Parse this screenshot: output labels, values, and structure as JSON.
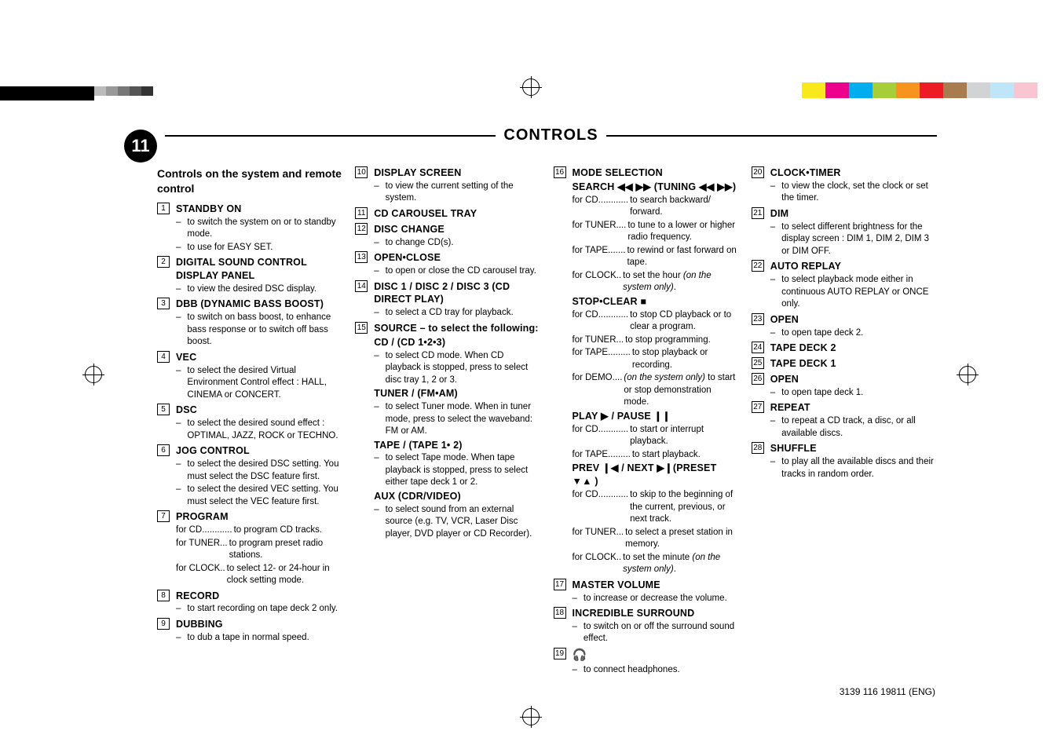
{
  "page_number": "11",
  "title": "CONTROLS",
  "footer": "3139 116 19811 (ENG)",
  "section_heading": "Controls on the system and remote control",
  "palette_colors": [
    "#f8e81c",
    "#ec008c",
    "#00aeef",
    "#a6ce39",
    "#f7941d",
    "#ed1c24",
    "#a97c50",
    "#d1d3d4",
    "#bfe5f9",
    "#f9c5d1"
  ],
  "items": [
    {
      "n": "1",
      "name": "STANDBY ON",
      "dashes": [
        "to switch the system on or to standby mode.",
        "to use for EASY SET."
      ]
    },
    {
      "n": "2",
      "name": "DIGITAL SOUND CONTROL DISPLAY PANEL",
      "dashes": [
        "to view the desired DSC display."
      ]
    },
    {
      "n": "3",
      "name": "DBB (DYNAMIC BASS BOOST)",
      "dashes": [
        "to switch on bass boost, to enhance bass response or to switch off bass boost."
      ]
    },
    {
      "n": "4",
      "name": "VEC",
      "dashes": [
        "to select the desired Virtual Environment Control effect : HALL, CINEMA or CONCERT."
      ]
    },
    {
      "n": "5",
      "name": "DSC",
      "dashes": [
        "to select the desired sound effect : OPTIMAL, JAZZ,  ROCK or TECHNO."
      ]
    },
    {
      "n": "6",
      "name": "JOG CONTROL",
      "dashes": [
        "to select the desired DSC setting. You must select the DSC feature first.",
        "to select the desired VEC setting. You must select the VEC feature first."
      ]
    },
    {
      "n": "7",
      "name": "PROGRAM",
      "forlines": [
        {
          "lbl": "for CD",
          "dots": "............",
          "desc": "to program CD tracks."
        },
        {
          "lbl": "for TUNER",
          "dots": "...",
          "desc": "to program preset radio stations."
        },
        {
          "lbl": "for CLOCK",
          "dots": "..",
          "desc": "to select 12- or 24-hour in clock setting mode."
        }
      ]
    },
    {
      "n": "8",
      "name": "RECORD",
      "dashes": [
        "to start recording on tape deck 2 only."
      ]
    },
    {
      "n": "9",
      "name": "DUBBING",
      "dashes": [
        "to dub a tape in normal speed."
      ]
    },
    {
      "n": "10",
      "name": "DISPLAY SCREEN",
      "dashes": [
        "to view the current setting of the system."
      ]
    },
    {
      "n": "11",
      "name": "CD CAROUSEL TRAY"
    },
    {
      "n": "12",
      "name": "DISC CHANGE",
      "dashes": [
        "to change CD(s)."
      ]
    },
    {
      "n": "13",
      "name": "OPEN•CLOSE",
      "dashes": [
        "to open or close the CD carousel tray."
      ]
    },
    {
      "n": "14",
      "name": "DISC 1 / DISC 2 / DISC 3 (CD DIRECT PLAY)",
      "dashes": [
        "to select a CD tray for playback."
      ]
    },
    {
      "n": "15",
      "name_html": "<b>SOURCE</b> – to select the following:",
      "subs": [
        {
          "bold": "CD / (CD 1•2•3)",
          "dash": "to select CD mode. When CD playback is stopped, press to select disc tray 1, 2 or 3."
        },
        {
          "bold": "TUNER / (FM•AM)",
          "dash": "to select Tuner mode. When in tuner mode, press to select the waveband: FM or AM."
        },
        {
          "bold": "TAPE / (TAPE 1• 2)",
          "dash": "to select Tape mode. When tape playback is stopped, press to select either tape deck 1 or 2."
        },
        {
          "bold": "AUX (CDR/VIDEO)",
          "dash": "to select sound from an external source (e.g. TV, VCR, Laser Disc player, DVD player or CD Recorder)."
        }
      ]
    },
    {
      "n": "16",
      "name": "MODE SELECTION",
      "subs2": [
        {
          "bold_html": "SEARCH <span class='sym'>◀◀ ▶▶</span> (TUNING <span class='sym'>◀◀ ▶▶</span>)",
          "forlines": [
            {
              "lbl": "for CD",
              "dots": "............",
              "desc": "to search backward/ forward."
            },
            {
              "lbl": "for TUNER",
              "dots": "....",
              "desc": "to tune to a lower or higher radio frequency."
            },
            {
              "lbl": " for TAPE",
              "dots": ".......",
              "desc": "to rewind or fast forward on tape."
            },
            {
              "lbl": "for CLOCK",
              "dots": "..",
              "desc_html": "to set the hour <span class='italic'>(on the system only)</span>."
            }
          ]
        },
        {
          "bold_html": "STOP•CLEAR <span class='sym'>■</span>",
          "forlines": [
            {
              "lbl": "for CD",
              "dots": "............",
              "desc": "to stop CD playback or to clear a program."
            },
            {
              "lbl": "for TUNER",
              "dots": "...",
              "desc": "to stop programming."
            },
            {
              "lbl": "for TAPE",
              "dots": ".........",
              "desc": "to stop playback or recording."
            },
            {
              "lbl": "for DEMO",
              "dots": "....",
              "desc_html": "<span class='italic'>(on the system only)</span> to start or stop demonstration mode."
            }
          ]
        },
        {
          "bold_html": "PLAY <span class='sym'>▶</span> / PAUSE <span class='sym'>❙❙</span>",
          "forlines": [
            {
              "lbl": "for CD",
              "dots": "............",
              "desc": "to start or interrupt playback."
            },
            {
              "lbl": "for TAPE",
              "dots": ".........",
              "desc": "to start playback."
            }
          ]
        },
        {
          "bold_html": "PREV <span class='sym'>❙◀</span>  / NEXT <span class='sym'>▶❙</span>(PRESET <span class='sym'>▼▲</span> )",
          "forlines": [
            {
              "lbl": "for CD",
              "dots": "............",
              "desc": "to skip to the beginning of the current, previous, or next track."
            },
            {
              "lbl": "for TUNER",
              "dots": "...",
              "desc": "to select a preset station in memory."
            },
            {
              "lbl": "for CLOCK",
              "dots": "..",
              "desc_html": "to set the minute <span class='italic'>(on the system only)</span>."
            }
          ]
        }
      ]
    },
    {
      "n": "17",
      "name": "MASTER VOLUME",
      "dashes": [
        "to increase or decrease the volume."
      ]
    },
    {
      "n": "18",
      "name": "INCREDIBLE SURROUND",
      "dashes": [
        "to switch on or off the surround sound effect."
      ]
    },
    {
      "n": "19",
      "name_html": "<span class='sym' style='font-size:15px'>🎧</span>",
      "dashes": [
        "to connect headphones."
      ]
    },
    {
      "n": "20",
      "name": "CLOCK•TIMER",
      "dashes": [
        "to view the clock, set the clock or set the timer."
      ]
    },
    {
      "n": "21",
      "name": "DIM",
      "dashes": [
        "to select different brightness for the display screen : DIM 1, DIM 2, DIM 3 or DIM OFF."
      ]
    },
    {
      "n": "22",
      "name": "AUTO REPLAY",
      "dashes": [
        "to select playback mode either in continuous AUTO REPLAY or ONCE only."
      ]
    },
    {
      "n": "23",
      "name": "OPEN",
      "dashes": [
        "to open tape deck 2."
      ]
    },
    {
      "n": "24",
      "name": "TAPE DECK 2"
    },
    {
      "n": "25",
      "name": "TAPE DECK 1"
    },
    {
      "n": "26",
      "name": "OPEN",
      "dashes": [
        "to open tape deck 1."
      ]
    },
    {
      "n": "27",
      "name": "REPEAT",
      "dashes": [
        "to repeat a CD track, a disc, or all available discs."
      ]
    },
    {
      "n": "28",
      "name": "SHUFFLE",
      "dashes": [
        "to play all the available discs and their tracks in random order."
      ]
    }
  ]
}
